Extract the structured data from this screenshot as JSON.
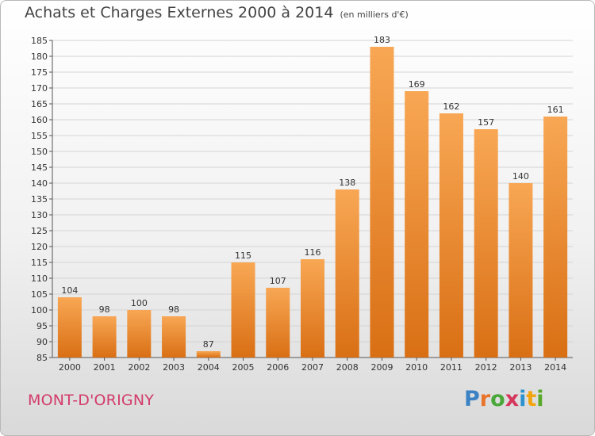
{
  "title": "Achats et Charges Externes 2000 à 2014",
  "subtitle": "(en milliers d'€)",
  "commune": "MONT-D'ORIGNY",
  "logo": {
    "letters": [
      "P",
      "r",
      "o",
      "x",
      "i",
      "t",
      "i"
    ],
    "colors": [
      "#3b82c4",
      "#e8742a",
      "#4aa83b",
      "#d5365c",
      "#2b91cf",
      "#f2a40c",
      "#5aa82a"
    ]
  },
  "colors": {
    "bar_top": "#f8a754",
    "bar_bottom": "#d96f14",
    "grid": "#d4d4d4",
    "axis": "#555555"
  },
  "chart_data": {
    "type": "bar",
    "categories": [
      "2000",
      "2001",
      "2002",
      "2003",
      "2004",
      "2005",
      "2006",
      "2007",
      "2008",
      "2009",
      "2010",
      "2011",
      "2012",
      "2013",
      "2014"
    ],
    "values": [
      104,
      98,
      100,
      98,
      87,
      115,
      107,
      116,
      138,
      183,
      169,
      162,
      157,
      140,
      161
    ],
    "ylim": [
      85,
      185
    ],
    "yticks": [
      85,
      90,
      95,
      100,
      105,
      110,
      115,
      120,
      125,
      130,
      135,
      140,
      145,
      150,
      155,
      160,
      165,
      170,
      175,
      180,
      185
    ],
    "grid": true,
    "xlabel": "",
    "ylabel": ""
  }
}
